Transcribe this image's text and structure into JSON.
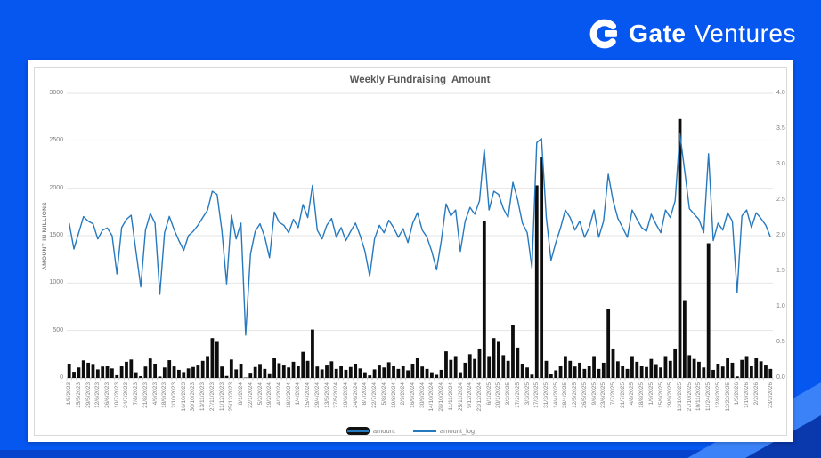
{
  "logo": {
    "brand": "Gate",
    "suffix": "Ventures"
  },
  "colors": {
    "background": "#0656f0",
    "bar": "#0d0d0d",
    "line": "#2679bf",
    "grid": "#e6e6e6",
    "axis": "#bfbfbf",
    "title_text": "#595959",
    "tick_text": "#7f7f7f"
  },
  "chart_data": {
    "type": "bar",
    "title": "Weekly Fundraising  Amount",
    "grid": "horizontal",
    "left_axis": {
      "title": "AMOUNT IN MILLIONS",
      "range": [
        0,
        3000
      ],
      "tick_labels": [
        "0",
        "500",
        "1000",
        "1500",
        "2000",
        "2500",
        "3000"
      ],
      "tick_values": [
        0,
        500,
        1000,
        1500,
        2000,
        2500,
        3000
      ]
    },
    "right_axis": {
      "range": [
        0,
        4
      ],
      "tick_labels": [
        "0.0",
        "0.5",
        "1.0",
        "1.5",
        "2.0",
        "2.5",
        "3.0",
        "3.5",
        "4.0"
      ],
      "tick_values": [
        0,
        0.5,
        1,
        1.5,
        2,
        2.5,
        3,
        3.5,
        4
      ]
    },
    "x_tick_labels": [
      "1/5/2023",
      "15/5/2023",
      "29/5/2023",
      "12/6/2023",
      "26/6/2023",
      "10/7/2023",
      "24/7/2023",
      "7/8/2023",
      "21/8/2023",
      "4/9/2023",
      "18/9/2023",
      "2/10/2023",
      "16/10/2023",
      "30/10/2023",
      "13/11/2023",
      "27/11/2023",
      "11/12/2023",
      "25/12/2023",
      "8/1/2024",
      "22/1/2024",
      "5/2/2024",
      "19/2/2024",
      "4/3/2024",
      "18/3/2024",
      "1/4/2024",
      "15/4/2024",
      "29/4/2024",
      "13/5/2024",
      "27/5/2024",
      "10/6/2024",
      "24/6/2024",
      "8/7/2024",
      "22/7/2024",
      "5/8/2024",
      "19/8/2024",
      "2/9/2024",
      "16/9/2024",
      "30/9/2024",
      "14/10/2024",
      "28/10/2024",
      "11/11/2024",
      "25/11/2024",
      "9/12/2024",
      "23/12/2024",
      "6/1/2025",
      "20/1/2025",
      "3/2/2025",
      "17/2/2025",
      "3/3/2025",
      "17/3/2025",
      "31/3/2025",
      "14/4/2025",
      "28/4/2025",
      "12/5/2025",
      "26/5/2025",
      "9/6/2025",
      "23/6/2025",
      "7/7/2025",
      "21/7/2025",
      "4/8/2025",
      "18/8/2025",
      "1/9/2025",
      "15/9/2025",
      "29/9/2025",
      "13/10/2025",
      "27/10/2025",
      "10/11/2025",
      "11/24/2025",
      "12/8/2025",
      "12/22/2025",
      "1/5/2026",
      "1/19/2026",
      "2/2/2026",
      "23/2/2026"
    ],
    "series": [
      {
        "name": "amount",
        "type": "bar",
        "axis": "left",
        "color": "#0d0d0d",
        "values": [
          150,
          65,
          110,
          185,
          160,
          147,
          90,
          120,
          128,
          100,
          29,
          130,
          170,
          194,
          60,
          19,
          120,
          205,
          150,
          15,
          110,
          187,
          121,
          85,
          62,
          100,
          115,
          140,
          180,
          230,
          420,
          380,
          120,
          21,
          194,
          90,
          150,
          4,
          55,
          115,
          147,
          95,
          49,
          215,
          155,
          140,
          110,
          170,
          130,
          275,
          180,
          510,
          120,
          90,
          140,
          175,
          95,
          130,
          85,
          115,
          150,
          100,
          60,
          27,
          90,
          140,
          110,
          165,
          130,
          95,
          125,
          80,
          150,
          210,
          120,
          95,
          60,
          33,
          85,
          280,
          190,
          230,
          60,
          160,
          250,
          200,
          310,
          1650,
          230,
          420,
          380,
          240,
          180,
          560,
          320,
          150,
          110,
          35,
          2030,
          2330,
          180,
          45,
          80,
          130,
          230,
          180,
          120,
          160,
          95,
          130,
          230,
          95,
          160,
          730,
          310,
          175,
          130,
          95,
          230,
          170,
          130,
          115,
          200,
          145,
          110,
          230,
          180,
          310,
          2730,
          820,
          240,
          200,
          170,
          110,
          1420,
          85,
          150,
          120,
          210,
          160,
          16,
          190,
          230,
          130,
          210,
          175,
          140,
          95
        ]
      },
      {
        "name": "amount_log",
        "type": "line",
        "axis": "right",
        "color": "#2679bf",
        "derived_from": "log10 of amount"
      }
    ],
    "legend": {
      "position": "bottom",
      "entries": [
        "amount",
        "amount_log"
      ]
    }
  }
}
